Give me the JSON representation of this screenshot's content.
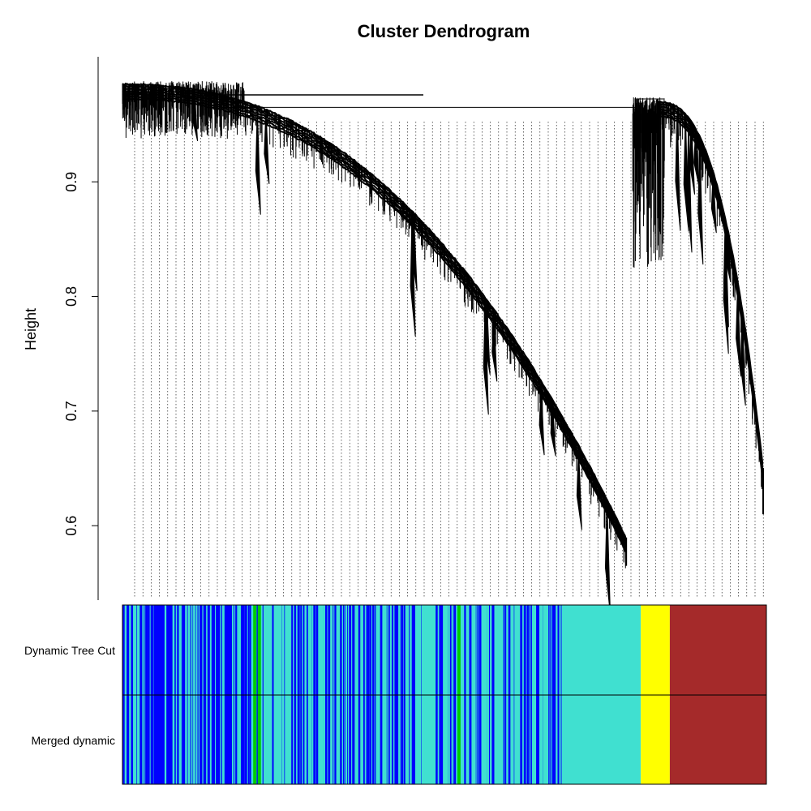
{
  "chart_data": {
    "type": "dendrogram",
    "title": "Cluster Dendrogram",
    "xlabel": "",
    "ylabel": "Height",
    "ylim": [
      0.54,
      0.99
    ],
    "yticks": [
      0.6,
      0.7,
      0.8,
      0.9
    ],
    "ytick_labels": [
      "0.6",
      "0.7",
      "0.8",
      "0.9"
    ],
    "branches": [
      {
        "name": "blue/turquoise",
        "join_height": 0.965,
        "min_height": 0.565,
        "x_range": [
          0,
          0.805
        ]
      },
      {
        "name": "yellow/brown",
        "join_height": 0.965,
        "min_height": 0.61,
        "x_range": [
          0.805,
          1.0
        ]
      }
    ],
    "colors": {
      "blue": "#0000FF",
      "turquoise": "#40E0D0",
      "green": "#00CC00",
      "yellow": "#FFFF00",
      "brown": "#A52A2A"
    },
    "color_rows": [
      {
        "label": "Dynamic Tree Cut",
        "segments": [
          {
            "color": "blue",
            "start": 0.0,
            "end": 0.19
          },
          {
            "color": "turquoise",
            "start": 0.19,
            "end": 0.68
          },
          {
            "color": "blue",
            "start": 0.67,
            "end": 0.682
          },
          {
            "color": "turquoise",
            "start": 0.682,
            "end": 0.805
          },
          {
            "color": "yellow",
            "start": 0.805,
            "end": 0.85
          },
          {
            "color": "brown",
            "start": 0.85,
            "end": 1.0
          }
        ]
      },
      {
        "label": "Merged dynamic",
        "segments": [
          {
            "color": "blue",
            "start": 0.0,
            "end": 0.19
          },
          {
            "color": "turquoise",
            "start": 0.19,
            "end": 0.68
          },
          {
            "color": "blue",
            "start": 0.67,
            "end": 0.682
          },
          {
            "color": "turquoise",
            "start": 0.682,
            "end": 0.805
          },
          {
            "color": "yellow",
            "start": 0.805,
            "end": 0.85
          },
          {
            "color": "brown",
            "start": 0.85,
            "end": 1.0
          }
        ]
      }
    ]
  }
}
